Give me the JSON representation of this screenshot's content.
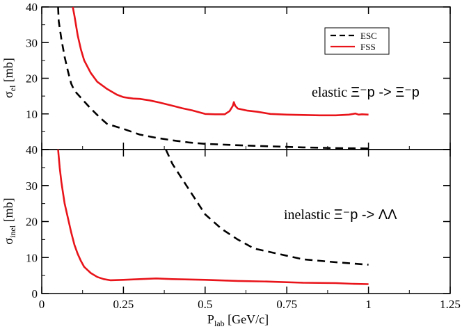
{
  "chart_data": [
    {
      "type": "line",
      "panel": "top",
      "ylabel_main": "σ",
      "ylabel_sub": "el",
      "ylabel_unit": " [mb]",
      "annotation_prefix": "elastic ",
      "annotation_reaction": "Ξ⁻p -> Ξ⁻p",
      "xlim": [
        0,
        1.25
      ],
      "ylim": [
        0,
        40
      ],
      "yticks": [
        0,
        10,
        20,
        30,
        40
      ],
      "ytick_labels": [
        "",
        "10",
        "20",
        "30",
        "40"
      ],
      "legend_position": "top-right",
      "series": [
        {
          "name": "ESC",
          "color": "#000000",
          "dash": "dashed",
          "points": [
            [
              0.05,
              40
            ],
            [
              0.052,
              36
            ],
            [
              0.06,
              31
            ],
            [
              0.07,
              26
            ],
            [
              0.08,
              22
            ],
            [
              0.09,
              18.5
            ],
            [
              0.1,
              16.5
            ],
            [
              0.12,
              14.5
            ],
            [
              0.15,
              11.5
            ],
            [
              0.18,
              8.8
            ],
            [
              0.2,
              7.2
            ],
            [
              0.25,
              5.8
            ],
            [
              0.3,
              4.2
            ],
            [
              0.35,
              3.3
            ],
            [
              0.4,
              2.6
            ],
            [
              0.45,
              2.0
            ],
            [
              0.5,
              1.6
            ],
            [
              0.6,
              1.2
            ],
            [
              0.7,
              0.9
            ],
            [
              0.8,
              0.6
            ],
            [
              0.9,
              0.4
            ],
            [
              1.0,
              0.3
            ]
          ]
        },
        {
          "name": "FSS",
          "color": "#e8141a",
          "dash": "solid",
          "points": [
            [
              0.095,
              40
            ],
            [
              0.1,
              37.5
            ],
            [
              0.11,
              32
            ],
            [
              0.12,
              28
            ],
            [
              0.13,
              25
            ],
            [
              0.15,
              21.5
            ],
            [
              0.17,
              19
            ],
            [
              0.2,
              17
            ],
            [
              0.23,
              15.4
            ],
            [
              0.25,
              14.7
            ],
            [
              0.28,
              14.3
            ],
            [
              0.3,
              14.2
            ],
            [
              0.33,
              13.8
            ],
            [
              0.36,
              13.2
            ],
            [
              0.4,
              12.3
            ],
            [
              0.43,
              11.6
            ],
            [
              0.46,
              11
            ],
            [
              0.5,
              10
            ],
            [
              0.53,
              9.9
            ],
            [
              0.56,
              9.9
            ],
            [
              0.575,
              10.8
            ],
            [
              0.585,
              12.3
            ],
            [
              0.588,
              13.3
            ],
            [
              0.592,
              12.3
            ],
            [
              0.6,
              11.5
            ],
            [
              0.63,
              10.9
            ],
            [
              0.66,
              10.6
            ],
            [
              0.7,
              10
            ],
            [
              0.75,
              9.8
            ],
            [
              0.8,
              9.7
            ],
            [
              0.85,
              9.6
            ],
            [
              0.9,
              9.6
            ],
            [
              0.94,
              9.8
            ],
            [
              0.96,
              10.1
            ],
            [
              0.97,
              9.8
            ],
            [
              0.98,
              9.9
            ],
            [
              1.0,
              9.8
            ]
          ]
        }
      ]
    },
    {
      "type": "line",
      "panel": "bottom",
      "ylabel_main": "σ",
      "ylabel_sub": "inel",
      "ylabel_unit": " [mb]",
      "annotation_prefix": "inelastic ",
      "annotation_reaction": "Ξ⁻p -> ΛΛ",
      "xlabel_main": "P",
      "xlabel_sub": "lab",
      "xlabel_unit": " [GeV/c]",
      "xlim": [
        0,
        1.25
      ],
      "ylim": [
        0,
        40
      ],
      "xticks": [
        0,
        0.25,
        0.5,
        0.75,
        1,
        1.25
      ],
      "xtick_labels": [
        "0",
        "0.25",
        "0.5",
        "0.75",
        "1",
        "1.25"
      ],
      "yticks": [
        0,
        10,
        20,
        30,
        40
      ],
      "ytick_labels": [
        "0",
        "10",
        "20",
        "30",
        "40"
      ],
      "series": [
        {
          "name": "ESC",
          "color": "#000000",
          "dash": "dashed",
          "points": [
            [
              0.38,
              40
            ],
            [
              0.4,
              36
            ],
            [
              0.45,
              29
            ],
            [
              0.5,
              22
            ],
            [
              0.55,
              18
            ],
            [
              0.6,
              15
            ],
            [
              0.65,
              12.5
            ],
            [
              0.7,
              11.5
            ],
            [
              0.75,
              10.5
            ],
            [
              0.8,
              9.5
            ],
            [
              0.9,
              8.7
            ],
            [
              1.0,
              8.0
            ]
          ]
        },
        {
          "name": "FSS",
          "color": "#e8141a",
          "dash": "solid",
          "points": [
            [
              0.05,
              40
            ],
            [
              0.055,
              35
            ],
            [
              0.06,
              31
            ],
            [
              0.065,
              28
            ],
            [
              0.07,
              25
            ],
            [
              0.08,
              21
            ],
            [
              0.09,
              17
            ],
            [
              0.1,
              13.5
            ],
            [
              0.11,
              11
            ],
            [
              0.12,
              9
            ],
            [
              0.13,
              7.4
            ],
            [
              0.15,
              5.7
            ],
            [
              0.17,
              4.6
            ],
            [
              0.19,
              4.0
            ],
            [
              0.21,
              3.7
            ],
            [
              0.25,
              3.8
            ],
            [
              0.3,
              4.0
            ],
            [
              0.35,
              4.2
            ],
            [
              0.4,
              4.0
            ],
            [
              0.5,
              3.8
            ],
            [
              0.6,
              3.5
            ],
            [
              0.7,
              3.3
            ],
            [
              0.8,
              3.0
            ],
            [
              0.9,
              2.9
            ],
            [
              0.95,
              2.7
            ],
            [
              1.0,
              2.6
            ]
          ]
        }
      ]
    }
  ]
}
